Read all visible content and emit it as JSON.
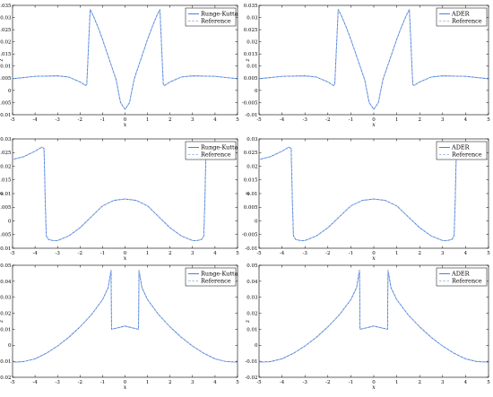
{
  "colors": {
    "solver": "#3f6fd6",
    "reference": "#9cc0ea",
    "frame": "#000000"
  },
  "chart_data": [
    {
      "type": "line",
      "xlabel": "x",
      "ylabel": "z",
      "xlim": [
        -5,
        5
      ],
      "ylim": [
        -0.01,
        0.035
      ],
      "xticks": [
        "-5",
        "-4",
        "-3",
        "-2",
        "-1",
        "0",
        "1",
        "2",
        "3",
        "4",
        "5"
      ],
      "yticks": [
        "-0.01",
        "-0.005",
        "0",
        "0.005",
        "0.01",
        "0.015",
        "0.02",
        "0.025",
        "0.03",
        "0.035"
      ],
      "legend_position": "top-right",
      "series": [
        {
          "name": "Runge-Kutta",
          "style": "solid",
          "x": [
            -5,
            -4,
            -3,
            -2.5,
            -2,
            -1.75,
            -1.7,
            -1.55,
            -1.4,
            -1.2,
            -1,
            -0.8,
            -0.6,
            -0.4,
            -0.2,
            0,
            0.2,
            0.4,
            0.6,
            0.8,
            1,
            1.2,
            1.4,
            1.55,
            1.7,
            1.75,
            2,
            2.5,
            3,
            4,
            5
          ],
          "y": [
            0.0048,
            0.0058,
            0.006,
            0.0055,
            0.0035,
            0.002,
            0.0025,
            0.0333,
            0.0305,
            0.026,
            0.021,
            0.0155,
            0.01,
            0.0045,
            -0.005,
            -0.0078,
            -0.005,
            0.0045,
            0.01,
            0.0155,
            0.021,
            0.026,
            0.0305,
            0.0333,
            0.0025,
            0.002,
            0.0035,
            0.0055,
            0.006,
            0.0058,
            0.0048
          ]
        },
        {
          "name": "Reference",
          "style": "dashed",
          "x": [
            -5,
            -4,
            -3,
            -2.5,
            -2,
            -1.75,
            -1.7,
            -1.55,
            -1.4,
            -1.2,
            -1,
            -0.8,
            -0.6,
            -0.4,
            -0.2,
            0,
            0.2,
            0.4,
            0.6,
            0.8,
            1,
            1.2,
            1.4,
            1.55,
            1.7,
            1.75,
            2,
            2.5,
            3,
            4,
            5
          ],
          "y": [
            0.0048,
            0.0058,
            0.006,
            0.0055,
            0.0035,
            0.002,
            0.0025,
            0.0333,
            0.0305,
            0.026,
            0.021,
            0.0155,
            0.01,
            0.0045,
            -0.005,
            -0.0078,
            -0.005,
            0.0045,
            0.01,
            0.0155,
            0.021,
            0.026,
            0.0305,
            0.0333,
            0.0025,
            0.002,
            0.0035,
            0.0055,
            0.006,
            0.0058,
            0.0048
          ]
        }
      ]
    },
    {
      "type": "line",
      "xlabel": "x",
      "ylabel": "z",
      "xlim": [
        -5,
        5
      ],
      "ylim": [
        -0.01,
        0.035
      ],
      "xticks": [
        "-5",
        "-4",
        "-3",
        "-2",
        "-1",
        "0",
        "1",
        "2",
        "3",
        "4",
        "5"
      ],
      "yticks": [
        "-0.01",
        "-0.005",
        "0",
        "0.005",
        "0.01",
        "0.015",
        "0.02",
        "0.025",
        "0.03",
        "0.035"
      ],
      "legend_position": "top-right",
      "series": [
        {
          "name": "ADER",
          "style": "solid",
          "x": [
            -5,
            -4,
            -3,
            -2.5,
            -2,
            -1.75,
            -1.7,
            -1.55,
            -1.4,
            -1.2,
            -1,
            -0.8,
            -0.6,
            -0.4,
            -0.2,
            0,
            0.2,
            0.4,
            0.6,
            0.8,
            1,
            1.2,
            1.4,
            1.55,
            1.7,
            1.75,
            2,
            2.5,
            3,
            4,
            5
          ],
          "y": [
            0.0048,
            0.0058,
            0.006,
            0.0055,
            0.0035,
            0.002,
            0.0025,
            0.0333,
            0.0305,
            0.026,
            0.021,
            0.0155,
            0.01,
            0.0045,
            -0.005,
            -0.0078,
            -0.005,
            0.0045,
            0.01,
            0.0155,
            0.021,
            0.026,
            0.0305,
            0.0333,
            0.0025,
            0.002,
            0.0035,
            0.0055,
            0.006,
            0.0058,
            0.0048
          ]
        },
        {
          "name": "Reference",
          "style": "dashed",
          "x": [
            -5,
            -4,
            -3,
            -2.5,
            -2,
            -1.75,
            -1.7,
            -1.55,
            -1.4,
            -1.2,
            -1,
            -0.8,
            -0.6,
            -0.4,
            -0.2,
            0,
            0.2,
            0.4,
            0.6,
            0.8,
            1,
            1.2,
            1.4,
            1.55,
            1.7,
            1.75,
            2,
            2.5,
            3,
            4,
            5
          ],
          "y": [
            0.0048,
            0.0058,
            0.006,
            0.0055,
            0.0035,
            0.002,
            0.0025,
            0.0333,
            0.0305,
            0.026,
            0.021,
            0.0155,
            0.01,
            0.0045,
            -0.005,
            -0.0078,
            -0.005,
            0.0045,
            0.01,
            0.0155,
            0.021,
            0.026,
            0.0305,
            0.0333,
            0.0025,
            0.002,
            0.0035,
            0.0055,
            0.006,
            0.0058,
            0.0048
          ]
        }
      ]
    },
    {
      "type": "line",
      "xlabel": "x",
      "ylabel": "z",
      "xlim": [
        -5,
        5
      ],
      "ylim": [
        -0.01,
        0.03
      ],
      "xticks": [
        "-5",
        "-4",
        "-3",
        "-2",
        "-1",
        "0",
        "1",
        "2",
        "3",
        "4",
        "5"
      ],
      "yticks": [
        "-0.01",
        "-0.005",
        "0",
        "0.005",
        "0.01",
        "0.015",
        "0.02",
        "0.025",
        "0.03"
      ],
      "legend_position": "top-right",
      "series": [
        {
          "name": "Runge-Kutta",
          "style": "solid",
          "x": [
            -5,
            -4.5,
            -4,
            -3.7,
            -3.6,
            -3.55,
            -3.5,
            -3.4,
            -3.2,
            -3,
            -2.5,
            -2,
            -1.5,
            -1,
            -0.5,
            0,
            0.5,
            1,
            1.5,
            2,
            2.5,
            3,
            3.2,
            3.4,
            3.5,
            3.55,
            3.6,
            3.7,
            4,
            4.5,
            5
          ],
          "y": [
            0.0225,
            0.0235,
            0.0255,
            0.027,
            0.0265,
            0.008,
            -0.0055,
            -0.0068,
            -0.0072,
            -0.0072,
            -0.0055,
            -0.0025,
            0.0015,
            0.0055,
            0.0075,
            0.008,
            0.0075,
            0.0055,
            0.0015,
            -0.0025,
            -0.0055,
            -0.0072,
            -0.0072,
            -0.0068,
            -0.0055,
            0.008,
            0.0265,
            0.027,
            0.0255,
            0.0235,
            0.0225
          ]
        },
        {
          "name": "Reference",
          "style": "dashed",
          "x": [
            -5,
            -4.5,
            -4,
            -3.7,
            -3.6,
            -3.55,
            -3.5,
            -3.4,
            -3.2,
            -3,
            -2.5,
            -2,
            -1.5,
            -1,
            -0.5,
            0,
            0.5,
            1,
            1.5,
            2,
            2.5,
            3,
            3.2,
            3.4,
            3.5,
            3.55,
            3.6,
            3.7,
            4,
            4.5,
            5
          ],
          "y": [
            0.0225,
            0.0235,
            0.0255,
            0.027,
            0.0265,
            0.008,
            -0.0055,
            -0.0068,
            -0.0072,
            -0.0072,
            -0.0055,
            -0.0025,
            0.0015,
            0.0055,
            0.0075,
            0.008,
            0.0075,
            0.0055,
            0.0015,
            -0.0025,
            -0.0055,
            -0.0072,
            -0.0072,
            -0.0068,
            -0.0055,
            0.008,
            0.0265,
            0.027,
            0.0255,
            0.0235,
            0.0225
          ]
        }
      ]
    },
    {
      "type": "line",
      "xlabel": "x",
      "ylabel": "z",
      "xlim": [
        -5,
        5
      ],
      "ylim": [
        -0.01,
        0.03
      ],
      "xticks": [
        "-5",
        "-4",
        "-3",
        "-2",
        "-1",
        "0",
        "1",
        "2",
        "3",
        "4",
        "5"
      ],
      "yticks": [
        "-0.01",
        "-0.005",
        "0",
        "0.005",
        "0.01",
        "0.015",
        "0.02",
        "0.025",
        "0.03"
      ],
      "legend_position": "top-right",
      "series": [
        {
          "name": "ADER",
          "style": "solid",
          "x": [
            -5,
            -4.5,
            -4,
            -3.7,
            -3.6,
            -3.55,
            -3.5,
            -3.4,
            -3.2,
            -3,
            -2.5,
            -2,
            -1.5,
            -1,
            -0.5,
            0,
            0.5,
            1,
            1.5,
            2,
            2.5,
            3,
            3.2,
            3.4,
            3.5,
            3.55,
            3.6,
            3.7,
            4,
            4.5,
            5
          ],
          "y": [
            0.0225,
            0.0235,
            0.0255,
            0.027,
            0.0265,
            0.008,
            -0.0055,
            -0.0068,
            -0.0072,
            -0.0072,
            -0.0055,
            -0.0025,
            0.0015,
            0.0055,
            0.0075,
            0.008,
            0.0075,
            0.0055,
            0.0015,
            -0.0025,
            -0.0055,
            -0.0072,
            -0.0072,
            -0.0068,
            -0.0055,
            0.008,
            0.0265,
            0.027,
            0.0255,
            0.0235,
            0.0225
          ]
        },
        {
          "name": "Reference",
          "style": "dashed",
          "x": [
            -5,
            -4.5,
            -4,
            -3.7,
            -3.6,
            -3.55,
            -3.5,
            -3.4,
            -3.2,
            -3,
            -2.5,
            -2,
            -1.5,
            -1,
            -0.5,
            0,
            0.5,
            1,
            1.5,
            2,
            2.5,
            3,
            3.2,
            3.4,
            3.5,
            3.55,
            3.6,
            3.7,
            4,
            4.5,
            5
          ],
          "y": [
            0.0225,
            0.0235,
            0.0255,
            0.027,
            0.0265,
            0.008,
            -0.0055,
            -0.0068,
            -0.0072,
            -0.0072,
            -0.0055,
            -0.0025,
            0.0015,
            0.0055,
            0.0075,
            0.008,
            0.0075,
            0.0055,
            0.0015,
            -0.0025,
            -0.0055,
            -0.0072,
            -0.0072,
            -0.0068,
            -0.0055,
            0.008,
            0.0265,
            0.027,
            0.0255,
            0.0235,
            0.0225
          ]
        }
      ]
    },
    {
      "type": "line",
      "xlabel": "x",
      "ylabel": "z",
      "xlim": [
        -5,
        5
      ],
      "ylim": [
        -0.02,
        0.05
      ],
      "xticks": [
        "-5",
        "-4",
        "-3",
        "-2",
        "-1",
        "0",
        "1",
        "2",
        "3",
        "4",
        "5"
      ],
      "yticks": [
        "-0.02",
        "-0.01",
        "0",
        "0.01",
        "0.02",
        "0.03",
        "0.04",
        "0.05"
      ],
      "legend_position": "top-right",
      "series": [
        {
          "name": "Runge-Kutta",
          "style": "solid",
          "x": [
            -5,
            -4.5,
            -4,
            -3.5,
            -3,
            -2.5,
            -2,
            -1.5,
            -1,
            -0.75,
            -0.62,
            -0.6,
            -0.45,
            -0.3,
            -0.15,
            0,
            0.15,
            0.3,
            0.45,
            0.6,
            0.62,
            0.75,
            1,
            1.5,
            2,
            2.5,
            3,
            3.5,
            4,
            4.5,
            5
          ],
          "y": [
            -0.0105,
            -0.0102,
            -0.0085,
            -0.005,
            -0.0005,
            0.005,
            0.0115,
            0.019,
            0.0285,
            0.036,
            0.047,
            0.01,
            0.0105,
            0.011,
            0.0115,
            0.012,
            0.0115,
            0.011,
            0.0105,
            0.01,
            0.047,
            0.036,
            0.0285,
            0.019,
            0.0115,
            0.005,
            -0.0005,
            -0.005,
            -0.0085,
            -0.0102,
            -0.0105
          ]
        },
        {
          "name": "Reference",
          "style": "dashed",
          "x": [
            -5,
            -4.5,
            -4,
            -3.5,
            -3,
            -2.5,
            -2,
            -1.5,
            -1,
            -0.75,
            -0.62,
            -0.6,
            -0.45,
            -0.3,
            -0.15,
            0,
            0.15,
            0.3,
            0.45,
            0.6,
            0.62,
            0.75,
            1,
            1.5,
            2,
            2.5,
            3,
            3.5,
            4,
            4.5,
            5
          ],
          "y": [
            -0.0105,
            -0.0102,
            -0.0085,
            -0.005,
            -0.0005,
            0.005,
            0.0115,
            0.019,
            0.0285,
            0.036,
            0.047,
            0.01,
            0.0105,
            0.011,
            0.0115,
            0.012,
            0.0115,
            0.011,
            0.0105,
            0.01,
            0.047,
            0.036,
            0.0285,
            0.019,
            0.0115,
            0.005,
            -0.0005,
            -0.005,
            -0.0085,
            -0.0102,
            -0.0105
          ]
        }
      ]
    },
    {
      "type": "line",
      "xlabel": "x",
      "ylabel": "z",
      "xlim": [
        -5,
        5
      ],
      "ylim": [
        -0.02,
        0.05
      ],
      "xticks": [
        "-5",
        "-4",
        "-3",
        "-2",
        "-1",
        "0",
        "1",
        "2",
        "3",
        "4",
        "5"
      ],
      "yticks": [
        "-0.02",
        "-0.01",
        "0",
        "0.01",
        "0.02",
        "0.03",
        "0.04",
        "0.05"
      ],
      "legend_position": "top-right",
      "series": [
        {
          "name": "ADER",
          "style": "solid",
          "x": [
            -5,
            -4.5,
            -4,
            -3.5,
            -3,
            -2.5,
            -2,
            -1.5,
            -1,
            -0.75,
            -0.62,
            -0.6,
            -0.45,
            -0.3,
            -0.15,
            0,
            0.15,
            0.3,
            0.45,
            0.6,
            0.62,
            0.75,
            1,
            1.5,
            2,
            2.5,
            3,
            3.5,
            4,
            4.5,
            5
          ],
          "y": [
            -0.0105,
            -0.0102,
            -0.0085,
            -0.005,
            -0.0005,
            0.005,
            0.0115,
            0.019,
            0.0285,
            0.036,
            0.047,
            0.01,
            0.0105,
            0.011,
            0.0115,
            0.012,
            0.0115,
            0.011,
            0.0105,
            0.01,
            0.047,
            0.036,
            0.0285,
            0.019,
            0.0115,
            0.005,
            -0.0005,
            -0.005,
            -0.0085,
            -0.0102,
            -0.0105
          ]
        },
        {
          "name": "Reference",
          "style": "dashed",
          "x": [
            -5,
            -4.5,
            -4,
            -3.5,
            -3,
            -2.5,
            -2,
            -1.5,
            -1,
            -0.75,
            -0.62,
            -0.6,
            -0.45,
            -0.3,
            -0.15,
            0,
            0.15,
            0.3,
            0.45,
            0.6,
            0.62,
            0.75,
            1,
            1.5,
            2,
            2.5,
            3,
            3.5,
            4,
            4.5,
            5
          ],
          "y": [
            -0.0105,
            -0.0102,
            -0.0085,
            -0.005,
            -0.0005,
            0.005,
            0.0115,
            0.019,
            0.0285,
            0.036,
            0.047,
            0.01,
            0.0105,
            0.011,
            0.0115,
            0.012,
            0.0115,
            0.011,
            0.0105,
            0.01,
            0.047,
            0.036,
            0.0285,
            0.019,
            0.0115,
            0.005,
            -0.0005,
            -0.005,
            -0.0085,
            -0.0102,
            -0.0105
          ]
        }
      ]
    }
  ]
}
